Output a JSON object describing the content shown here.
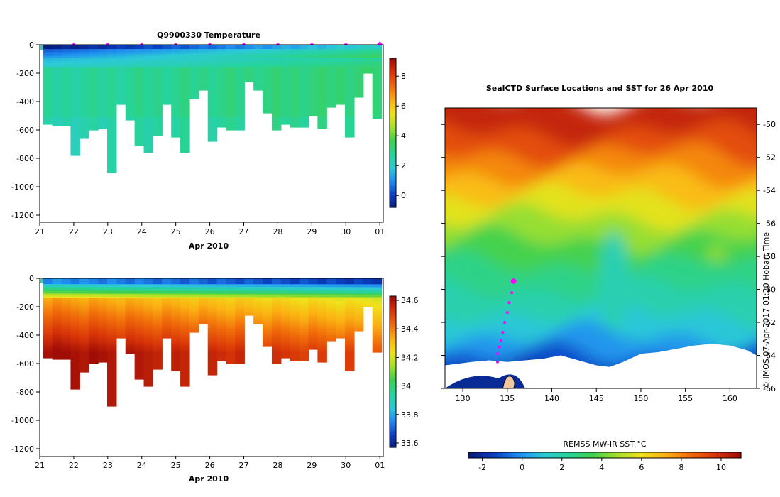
{
  "palettes": {
    "temperature": [
      "#0a1c78",
      "#0b3fc2",
      "#1f8cf0",
      "#2cc9d7",
      "#27d39a",
      "#3ed04f",
      "#a5e02c",
      "#f0e21a",
      "#fbb012",
      "#f06a0a",
      "#d83508",
      "#a00c06"
    ],
    "salinity": [
      "#0a1c78",
      "#0b3fc2",
      "#1f8cf0",
      "#2cc9d7",
      "#27d39a",
      "#3ed04f",
      "#a5e02c",
      "#f0e21a",
      "#fbb012",
      "#f06a0a",
      "#d83508",
      "#a00c06"
    ],
    "sst": [
      "#0a1c78",
      "#0b3fc2",
      "#1f8cf0",
      "#2cc9d7",
      "#27d39a",
      "#3ed04f",
      "#a5e02c",
      "#f0e21a",
      "#fbb012",
      "#f06a0a",
      "#d83508",
      "#a00c06"
    ],
    "profile_marker": "#ff00ff",
    "ice": "#ffffff",
    "land": "#f0c8a0"
  },
  "chart_data": [
    {
      "type": "heatmap",
      "id": "temperature_section",
      "title": "Q9900330  Temperature",
      "xlabel": "Apr 2010",
      "xticks": [
        "21",
        "22",
        "23",
        "24",
        "25",
        "26",
        "27",
        "28",
        "29",
        "30",
        "01"
      ],
      "xlim": [
        21,
        31.1
      ],
      "ylim": [
        -1250,
        0
      ],
      "yticks": [
        0,
        -200,
        -400,
        -600,
        -800,
        -1000,
        -1200
      ],
      "colorbar": {
        "min": -0.8,
        "max": 9.2,
        "ticks": [
          0,
          2,
          4,
          6,
          8
        ]
      },
      "profile_marks": [
        22,
        23,
        24,
        25,
        26,
        27,
        28,
        29,
        30,
        31
      ],
      "profile_max_depth": [
        560,
        570,
        570,
        780,
        660,
        600,
        590,
        900,
        420,
        530,
        710,
        760,
        640,
        420,
        650,
        760,
        380,
        320,
        680,
        580,
        600,
        600,
        260,
        320,
        480,
        600,
        560,
        580,
        580,
        500,
        590,
        440,
        420,
        650,
        370,
        200,
        520
      ],
      "surface_value": -0.3,
      "deep_value": 2.9
    },
    {
      "type": "heatmap",
      "id": "salinity_section",
      "title": "",
      "xlabel": "Apr 2010",
      "xticks": [
        "21",
        "22",
        "23",
        "24",
        "25",
        "26",
        "27",
        "28",
        "29",
        "30",
        "01"
      ],
      "xlim": [
        21,
        31.1
      ],
      "ylim": [
        -1250,
        0
      ],
      "yticks": [
        0,
        -200,
        -400,
        -600,
        -800,
        -1000,
        -1200
      ],
      "colorbar": {
        "min": 33.57,
        "max": 34.63,
        "ticks": [
          33.6,
          33.8,
          34,
          34.2,
          34.4,
          34.6
        ],
        "tick_labels": [
          "33.6",
          "33.8",
          "34",
          "34.2",
          "34.4",
          "34.6"
        ]
      },
      "profile_max_depth": [
        560,
        570,
        570,
        780,
        660,
        600,
        590,
        900,
        420,
        530,
        710,
        760,
        640,
        420,
        650,
        760,
        380,
        320,
        680,
        580,
        600,
        600,
        260,
        320,
        480,
        600,
        560,
        580,
        580,
        500,
        590,
        440,
        420,
        650,
        370,
        200,
        520
      ],
      "surface_value": 33.75,
      "deep_value": 34.62
    },
    {
      "type": "heatmap",
      "id": "sst_map",
      "title": "SealCTD Surface Locations and SST for 26 Apr 2010",
      "xticks": [
        130,
        135,
        140,
        145,
        150,
        155,
        160
      ],
      "yticks": [
        -50,
        -52,
        -54,
        -56,
        -58,
        -60,
        -62,
        -64,
        -66
      ],
      "xlim": [
        128,
        163
      ],
      "ylim": [
        -66,
        -49
      ],
      "colorbar": {
        "label": "REMSS MW-IR SST °C",
        "min": -2.7,
        "max": 11,
        "ticks": [
          -2,
          0,
          2,
          4,
          6,
          8,
          10
        ]
      },
      "track": [
        {
          "lon": 135.7,
          "lat": -59.5
        },
        {
          "lon": 135.5,
          "lat": -60.2
        },
        {
          "lon": 135.2,
          "lat": -60.8
        },
        {
          "lon": 135.0,
          "lat": -61.4
        },
        {
          "lon": 134.7,
          "lat": -62.0
        },
        {
          "lon": 134.5,
          "lat": -62.6
        },
        {
          "lon": 134.3,
          "lat": -63.1
        },
        {
          "lon": 134.1,
          "lat": -63.5
        },
        {
          "lon": 133.9,
          "lat": -63.9
        },
        {
          "lon": 133.9,
          "lat": -64.4
        }
      ],
      "credit": "© IMOS 07-Apr-2017 01:20 Hobart Time"
    }
  ]
}
